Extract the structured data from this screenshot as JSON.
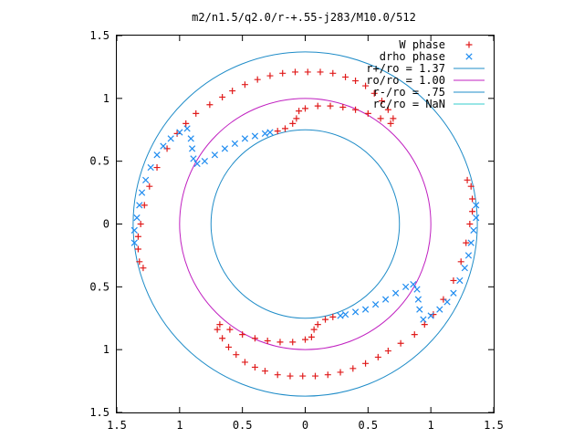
{
  "chart_data": {
    "type": "scatter",
    "title": "m2/n1.5/q2.0/r-+.55-j283/M10.0/512",
    "xlabel": "",
    "ylabel": "",
    "xlim": [
      -1.5,
      1.5
    ],
    "ylim": [
      -1.5,
      1.5
    ],
    "x_ticks": [
      -1.5,
      -1,
      -0.5,
      0,
      0.5,
      1,
      1.5
    ],
    "y_ticks": [
      -1.5,
      -1,
      -0.5,
      0,
      0.5,
      1,
      1.5
    ],
    "x_tick_labels": [
      "1.5",
      "1",
      "0.5",
      "0",
      "0.5",
      "1",
      "1.5"
    ],
    "y_tick_labels": [
      "1.5",
      "1",
      "0.5",
      "0",
      "0.5",
      "1",
      "1.5"
    ],
    "grid": false,
    "legend_position": "top-right",
    "circles": [
      {
        "name": "r+/ro = 1.37",
        "radius": 1.37,
        "color": "#1f8cc8"
      },
      {
        "name": "ro/ro = 1.00",
        "radius": 1.0,
        "color": "#c020c0"
      },
      {
        "name": "r-/ro = .75",
        "radius": 0.75,
        "color": "#1f8cc8"
      },
      {
        "name": "rc/ro = NaN",
        "radius": null,
        "color": "#33cccc"
      }
    ],
    "series": [
      {
        "name": "W phase",
        "marker": "plus",
        "color": "#e01b1b",
        "points": [
          [
            -1.29,
            -0.35
          ],
          [
            -1.32,
            -0.3
          ],
          [
            -1.33,
            -0.2
          ],
          [
            -1.33,
            -0.1
          ],
          [
            -1.31,
            0.0
          ],
          [
            -1.28,
            0.15
          ],
          [
            -1.24,
            0.3
          ],
          [
            -1.18,
            0.45
          ],
          [
            -1.1,
            0.6
          ],
          [
            -1.02,
            0.72
          ],
          [
            -0.95,
            0.8
          ],
          [
            -0.87,
            0.88
          ],
          [
            -0.76,
            0.95
          ],
          [
            -0.66,
            1.01
          ],
          [
            -0.58,
            1.06
          ],
          [
            -0.48,
            1.11
          ],
          [
            -0.38,
            1.15
          ],
          [
            -0.28,
            1.18
          ],
          [
            -0.18,
            1.2
          ],
          [
            -0.08,
            1.21
          ],
          [
            0.02,
            1.21
          ],
          [
            0.12,
            1.21
          ],
          [
            0.22,
            1.2
          ],
          [
            0.32,
            1.17
          ],
          [
            0.4,
            1.14
          ],
          [
            0.48,
            1.1
          ],
          [
            0.55,
            1.04
          ],
          [
            0.61,
            0.98
          ],
          [
            0.66,
            0.91
          ],
          [
            0.7,
            0.84
          ],
          [
            0.68,
            0.8
          ],
          [
            0.6,
            0.84
          ],
          [
            0.5,
            0.88
          ],
          [
            0.4,
            0.91
          ],
          [
            0.3,
            0.93
          ],
          [
            0.2,
            0.94
          ],
          [
            0.1,
            0.94
          ],
          [
            0.0,
            0.92
          ],
          [
            -0.05,
            0.9
          ],
          [
            -0.07,
            0.84
          ],
          [
            -0.1,
            0.8
          ],
          [
            -0.16,
            0.76
          ],
          [
            -0.22,
            0.74
          ],
          [
            1.29,
            0.35
          ],
          [
            1.32,
            0.3
          ],
          [
            1.33,
            0.2
          ],
          [
            1.33,
            0.1
          ],
          [
            1.31,
            0.0
          ],
          [
            1.28,
            -0.15
          ],
          [
            1.24,
            -0.3
          ],
          [
            1.18,
            -0.45
          ],
          [
            1.1,
            -0.6
          ],
          [
            1.02,
            -0.72
          ],
          [
            0.95,
            -0.8
          ],
          [
            0.87,
            -0.88
          ],
          [
            0.76,
            -0.95
          ],
          [
            0.66,
            -1.01
          ],
          [
            0.58,
            -1.06
          ],
          [
            0.48,
            -1.11
          ],
          [
            0.38,
            -1.15
          ],
          [
            0.28,
            -1.18
          ],
          [
            0.18,
            -1.2
          ],
          [
            0.08,
            -1.21
          ],
          [
            -0.02,
            -1.21
          ],
          [
            -0.12,
            -1.21
          ],
          [
            -0.22,
            -1.2
          ],
          [
            -0.32,
            -1.17
          ],
          [
            -0.4,
            -1.14
          ],
          [
            -0.48,
            -1.1
          ],
          [
            -0.55,
            -1.04
          ],
          [
            -0.61,
            -0.98
          ],
          [
            -0.66,
            -0.91
          ],
          [
            -0.7,
            -0.84
          ],
          [
            -0.68,
            -0.8
          ],
          [
            -0.6,
            -0.84
          ],
          [
            -0.5,
            -0.88
          ],
          [
            -0.4,
            -0.91
          ],
          [
            -0.3,
            -0.93
          ],
          [
            -0.2,
            -0.94
          ],
          [
            -0.1,
            -0.94
          ],
          [
            0.0,
            -0.92
          ],
          [
            0.05,
            -0.9
          ],
          [
            0.07,
            -0.84
          ],
          [
            0.1,
            -0.8
          ],
          [
            0.16,
            -0.76
          ],
          [
            0.22,
            -0.74
          ]
        ]
      },
      {
        "name": "drho phase",
        "marker": "cross",
        "color": "#1f8cf0",
        "points": [
          [
            -1.36,
            -0.15
          ],
          [
            -1.36,
            -0.05
          ],
          [
            -1.34,
            0.05
          ],
          [
            -1.32,
            0.15
          ],
          [
            -1.3,
            0.25
          ],
          [
            -1.27,
            0.35
          ],
          [
            -1.23,
            0.45
          ],
          [
            -1.18,
            0.55
          ],
          [
            -1.13,
            0.62
          ],
          [
            -1.07,
            0.68
          ],
          [
            -1.0,
            0.73
          ],
          [
            -0.94,
            0.76
          ],
          [
            -0.91,
            0.68
          ],
          [
            -0.9,
            0.6
          ],
          [
            -0.89,
            0.52
          ],
          [
            -0.86,
            0.48
          ],
          [
            -0.8,
            0.5
          ],
          [
            -0.72,
            0.55
          ],
          [
            -0.64,
            0.6
          ],
          [
            -0.56,
            0.64
          ],
          [
            -0.48,
            0.68
          ],
          [
            -0.4,
            0.7
          ],
          [
            -0.32,
            0.72
          ],
          [
            -0.28,
            0.73
          ],
          [
            1.36,
            0.15
          ],
          [
            1.36,
            0.05
          ],
          [
            1.34,
            -0.05
          ],
          [
            1.32,
            -0.15
          ],
          [
            1.3,
            -0.25
          ],
          [
            1.27,
            -0.35
          ],
          [
            1.23,
            -0.45
          ],
          [
            1.18,
            -0.55
          ],
          [
            1.13,
            -0.62
          ],
          [
            1.07,
            -0.68
          ],
          [
            1.0,
            -0.73
          ],
          [
            0.94,
            -0.76
          ],
          [
            0.91,
            -0.68
          ],
          [
            0.9,
            -0.6
          ],
          [
            0.89,
            -0.52
          ],
          [
            0.86,
            -0.48
          ],
          [
            0.8,
            -0.5
          ],
          [
            0.72,
            -0.55
          ],
          [
            0.64,
            -0.6
          ],
          [
            0.56,
            -0.64
          ],
          [
            0.48,
            -0.68
          ],
          [
            0.4,
            -0.7
          ],
          [
            0.32,
            -0.72
          ],
          [
            0.28,
            -0.73
          ]
        ]
      }
    ]
  }
}
